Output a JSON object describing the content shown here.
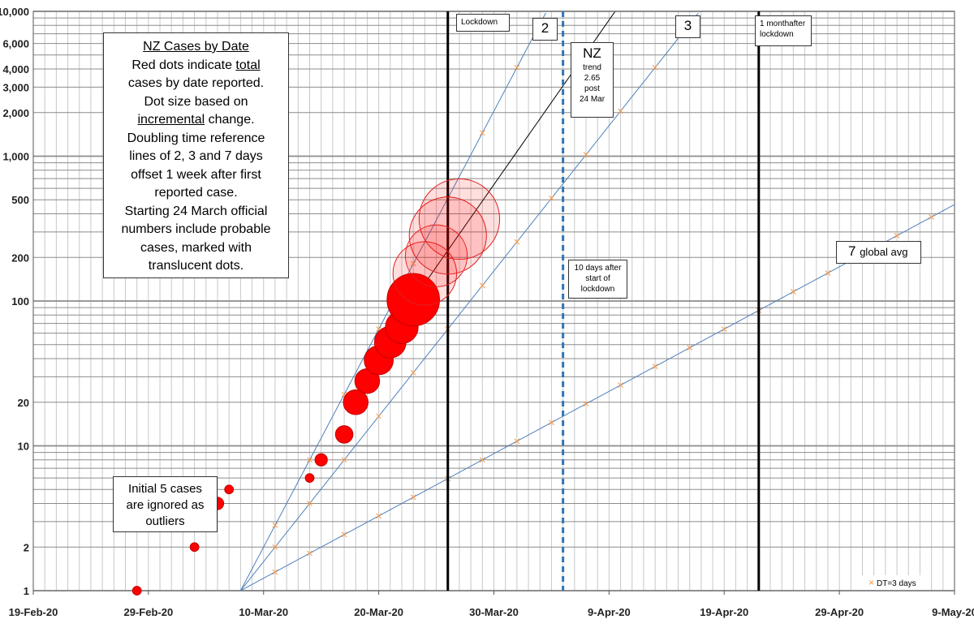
{
  "chart_data": {
    "type": "scatter",
    "title": "NZ Cases by Date",
    "yscale": "log",
    "ylim": [
      1,
      10000
    ],
    "xlim": [
      "19-Feb-20",
      "9-May-20"
    ],
    "x_tick_labels": [
      "19-Feb-20",
      "29-Feb-20",
      "10-Mar-20",
      "20-Mar-20",
      "30-Mar-20",
      "9-Apr-20",
      "19-Apr-20",
      "29-Apr-20",
      "9-May-20"
    ],
    "y_tick_labels": [
      "1",
      "2",
      "10",
      "20",
      "100",
      "200",
      "500",
      "1,000",
      "2,000",
      "3,000",
      "4,000",
      "6,000",
      "10,000"
    ],
    "series": [
      {
        "values": [
          {
            "x": "28-Feb-20",
            "y": 1,
            "increment": 1,
            "style": "solid"
          },
          {
            "x": "4-Mar-20",
            "y": 2,
            "increment": 1,
            "style": "solid"
          },
          {
            "x": "6-Mar-20",
            "y": 4,
            "increment": 2,
            "style": "solid"
          },
          {
            "x": "7-Mar-20",
            "y": 5,
            "increment": 1,
            "style": "solid"
          },
          {
            "x": "14-Mar-20",
            "y": 6,
            "increment": 1,
            "style": "solid"
          },
          {
            "x": "15-Mar-20",
            "y": 8,
            "increment": 2,
            "style": "solid"
          },
          {
            "x": "17-Mar-20",
            "y": 12,
            "increment": 4,
            "style": "solid"
          },
          {
            "x": "18-Mar-20",
            "y": 20,
            "increment": 8,
            "style": "solid"
          },
          {
            "x": "19-Mar-20",
            "y": 28,
            "increment": 8,
            "style": "solid"
          },
          {
            "x": "20-Mar-20",
            "y": 39,
            "increment": 11,
            "style": "solid"
          },
          {
            "x": "21-Mar-20",
            "y": 52,
            "increment": 13,
            "style": "solid"
          },
          {
            "x": "22-Mar-20",
            "y": 66,
            "increment": 14,
            "style": "solid"
          },
          {
            "x": "23-Mar-20",
            "y": 102,
            "increment": 36,
            "style": "solid"
          },
          {
            "x": "24-Mar-20",
            "y": 155,
            "increment": 53,
            "style": "translucent"
          },
          {
            "x": "25-Mar-20",
            "y": 205,
            "increment": 50,
            "style": "translucent"
          },
          {
            "x": "26-Mar-20",
            "y": 283,
            "increment": 78,
            "style": "translucent"
          },
          {
            "x": "27-Mar-20",
            "y": 368,
            "increment": 85,
            "style": "translucent"
          }
        ]
      }
    ],
    "reference_lines": [
      {
        "label": "2",
        "doubling_days": 2,
        "start": "8-Mar-20"
      },
      {
        "label": "3",
        "doubling_days": 3,
        "start": "8-Mar-20"
      },
      {
        "label": "7",
        "label_suffix": "global avg",
        "doubling_days": 7,
        "start": "8-Mar-20"
      },
      {
        "label": "NZ",
        "doubling_days": 2.65,
        "start": "24-Mar-20"
      }
    ],
    "markers": [
      {
        "label": "Lockdown",
        "x": "26-Mar-20",
        "style": "solid"
      },
      {
        "label": "10 days after start of lockdown",
        "x": "5-Apr-20",
        "style": "dashed"
      },
      {
        "label": "1 monthafter lockdown",
        "x": "22-Apr-20",
        "style": "solid"
      }
    ],
    "legend": {
      "label": "DT=3 days",
      "position": "bottom-right"
    },
    "annotations": {
      "info_box": {
        "line1": "NZ Cases by Date",
        "line2a": "Red dots indicate ",
        "line2b": "total",
        "line3": "cases by date reported.",
        "line4": "Dot size based on",
        "line5a": "incremental",
        "line5b": " change.",
        "line6": "Doubling time reference",
        "line7": "lines of 2, 3 and 7 days",
        "line8": "offset 1 week after first",
        "line9": "reported case.",
        "line10": "Starting 24 March official",
        "line11": "numbers include probable",
        "line12": "cases, marked with",
        "line13": "translucent dots."
      },
      "outliers_box": {
        "line1": "Initial 5 cases",
        "line2": "are ignored as",
        "line3": "outliers"
      },
      "lockdown_label": "Lockdown",
      "month_label_line1": "1 monthafter",
      "month_label_line2": "lockdown",
      "ten_days_line1": "10 days after",
      "ten_days_line2": "start of",
      "ten_days_line3": "lockdown",
      "nz_title": "NZ",
      "nz_line1": "trend",
      "nz_line2": "2.65",
      "nz_line3": "post",
      "nz_line4": "24 Mar",
      "label_2": "2",
      "label_3": "3",
      "label_7": "7",
      "label_global": "global avg"
    }
  }
}
